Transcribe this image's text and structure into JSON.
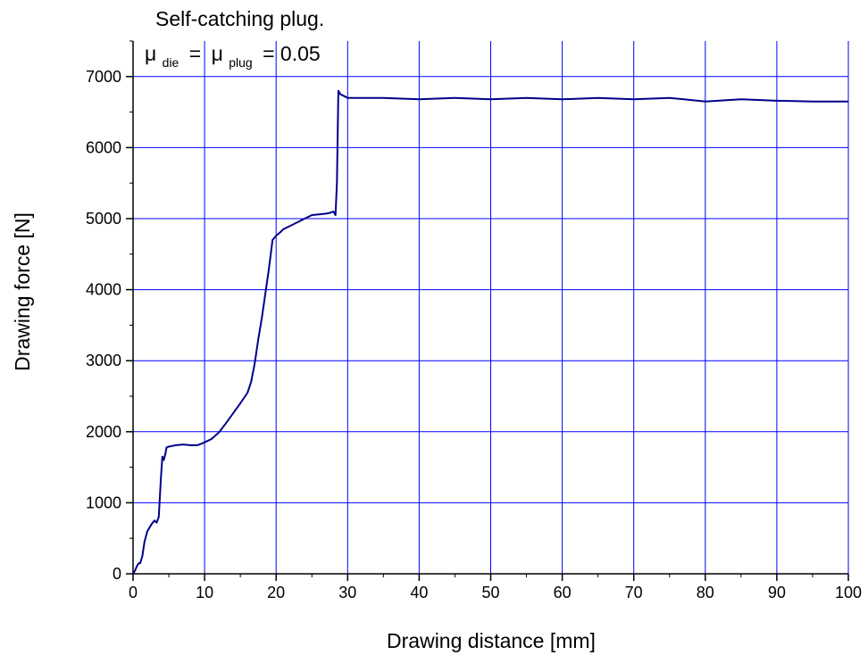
{
  "chart_data": {
    "type": "line",
    "title": "",
    "xlabel": "Drawing distance [mm]",
    "ylabel": "Drawing force [N]",
    "xlim": [
      0,
      100
    ],
    "ylim": [
      0,
      7500
    ],
    "x_ticks": [
      0,
      10,
      20,
      30,
      40,
      50,
      60,
      70,
      80,
      90,
      100
    ],
    "y_ticks": [
      0,
      1000,
      2000,
      3000,
      4000,
      5000,
      6000,
      7000
    ],
    "x_tick_labels": [
      "0",
      "10",
      "20",
      "30",
      "40",
      "50",
      "60",
      "70",
      "80",
      "90",
      "100"
    ],
    "y_tick_labels": [
      "0",
      "1000",
      "2000",
      "3000",
      "4000",
      "5000",
      "6000",
      "7000"
    ],
    "grid": true,
    "legend": "none",
    "annotation": {
      "line1": "Self-catching plug.",
      "mu": "μ",
      "sub_die": "die",
      "equals": "=",
      "sub_plug": "plug",
      "value": "= 0.05"
    },
    "colors": {
      "series": "#00008b",
      "grid": "#0000ff",
      "axis": "#000000"
    },
    "series": [
      {
        "x": [
          0,
          0.3,
          0.5,
          0.8,
          1.0,
          1.3,
          1.6,
          2.0,
          2.3,
          2.6,
          3.0,
          3.3,
          3.6,
          3.9,
          4.1,
          4.3,
          4.5,
          4.7,
          5.0,
          5.5,
          6.0,
          7.0,
          8.0,
          9.0,
          9.5,
          10.0,
          11.0,
          12.0,
          13.0,
          14.0,
          15.0,
          16.0,
          16.5,
          17.0,
          17.5,
          18.0,
          18.5,
          19.0,
          19.5,
          20.0,
          20.5,
          21.0,
          22.0,
          23.0,
          24.0,
          25.0,
          26.0,
          27.0,
          27.5,
          28.0,
          28.3,
          28.5,
          28.7,
          29.0,
          30.0,
          35.0,
          40.0,
          45.0,
          50.0,
          55.0,
          60.0,
          65.0,
          70.0,
          75.0,
          80.0,
          85.0,
          90.0,
          95.0,
          100.0
        ],
        "y": [
          0,
          50,
          100,
          150,
          150,
          250,
          450,
          600,
          650,
          700,
          750,
          720,
          800,
          1350,
          1650,
          1600,
          1680,
          1780,
          1790,
          1800,
          1810,
          1820,
          1810,
          1810,
          1830,
          1850,
          1900,
          1990,
          2120,
          2260,
          2400,
          2550,
          2700,
          2960,
          3300,
          3600,
          3950,
          4300,
          4700,
          4760,
          4800,
          4850,
          4900,
          4950,
          5000,
          5050,
          5060,
          5070,
          5080,
          5100,
          5050,
          5500,
          6800,
          6750,
          6700,
          6700,
          6680,
          6700,
          6680,
          6700,
          6680,
          6700,
          6680,
          6700,
          6650,
          6680,
          6660,
          6650,
          6650
        ]
      }
    ]
  }
}
